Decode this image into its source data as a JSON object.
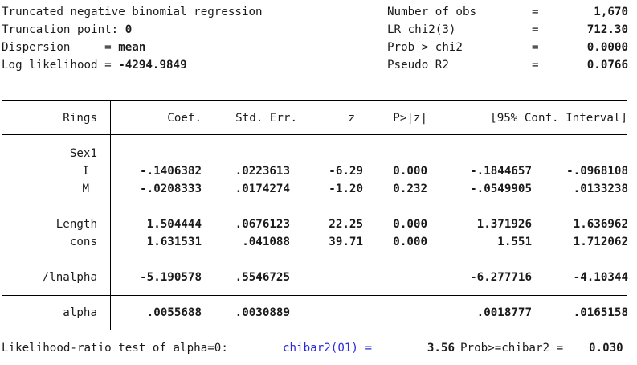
{
  "header": {
    "left": [
      {
        "label": "Truncated negative binomial regression",
        "value": ""
      },
      {
        "label": "Truncation point: ",
        "value": "0"
      },
      {
        "label": "Dispersion     = ",
        "value": "mean"
      },
      {
        "label": "Log likelihood = ",
        "value": "-4294.9849"
      }
    ],
    "right": [
      {
        "label": "Number of obs",
        "eq": "=",
        "value": "1,670"
      },
      {
        "label": "LR chi2(3)",
        "eq": "=",
        "value": "712.30"
      },
      {
        "label": "Prob > chi2",
        "eq": "=",
        "value": "0.0000"
      },
      {
        "label": "Pseudo R2",
        "eq": "=",
        "value": "0.0766"
      }
    ]
  },
  "table": {
    "depvar": "Rings",
    "columns": [
      "Coef.",
      "Std. Err.",
      "z",
      "P>|z|",
      "[95% Conf. Interval]"
    ],
    "sex_group_label": "Sex1",
    "rows": [
      {
        "name": "I",
        "coef": "-.1406382",
        "se": ".0223613",
        "z": "-6.29",
        "p": "0.000",
        "lo": "-.1844657",
        "hi": "-.0968108"
      },
      {
        "name": "M",
        "coef": "-.0208333",
        "se": ".0174274",
        "z": "-1.20",
        "p": "0.232",
        "lo": "-.0549905",
        "hi": ".0133238"
      },
      {
        "name": "Length",
        "coef": "1.504444",
        "se": ".0676123",
        "z": "22.25",
        "p": "0.000",
        "lo": "1.371926",
        "hi": "1.636962"
      },
      {
        "name": "_cons",
        "coef": "1.631531",
        "se": ".041088",
        "z": "39.71",
        "p": "0.000",
        "lo": "1.551",
        "hi": "1.712062"
      }
    ],
    "lnalpha": {
      "name": "/lnalpha",
      "coef": "-5.190578",
      "se": ".5546725",
      "lo": "-6.277716",
      "hi": "-4.10344"
    },
    "alpha": {
      "name": "alpha",
      "coef": ".0055688",
      "se": ".0030889",
      "lo": ".0018777",
      "hi": ".0165158"
    }
  },
  "footer": {
    "text": "Likelihood-ratio test of alpha=0:",
    "stat_label": "chibar2(01) =",
    "stat_value": "3.56",
    "prob_label": "Prob>=chibar2 =",
    "prob_value": "0.030"
  }
}
